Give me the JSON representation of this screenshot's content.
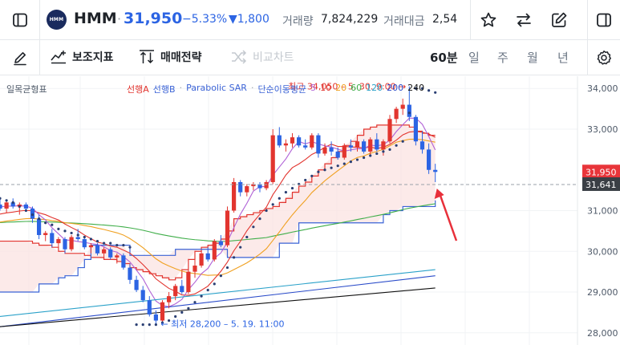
{
  "header": {
    "logo_text": "HMM",
    "ticker": "HMM",
    "separator": "·",
    "price": "31,950",
    "change_pct": "−5.33%",
    "change_abs": "▼1,800",
    "volume_label": "거래량",
    "volume_value": "7,824,229",
    "amount_label": "거래대금",
    "amount_value": "2,54",
    "actions": [
      "star-icon",
      "swap-icon",
      "edit-icon"
    ]
  },
  "toolbar": {
    "indicators_label": "보조지표",
    "strategy_label": "매매전략",
    "compare_label": "비교차트",
    "timeframes": [
      "60분",
      "일",
      "주",
      "월",
      "년"
    ],
    "active_timeframe": "60분"
  },
  "colors": {
    "up": "#e2352f",
    "down": "#2c64e3",
    "spanA": "#e2352f",
    "spanB": "#3b63d6",
    "sar": "#2a3f73",
    "ma5": "#b061d6",
    "ma10": "#e2352f",
    "ma20": "#f0a020",
    "ma60": "#3fae49",
    "ma120": "#2aa1c9",
    "ma200": "#2a4bc9",
    "ma240": "#111111",
    "cloud_fill": "#fbe3e2",
    "badge_price": "#e8353a",
    "badge_ref": "#3a3f45"
  },
  "chart_data": {
    "type": "candlestick",
    "indicator_title": "일목균형표",
    "legend": {
      "spanA": "선행A",
      "spanB": "선행B",
      "sar": "Parabolic SAR",
      "ma_label": "단순이동평균",
      "ma_periods": [
        "5",
        "10",
        "20",
        "60",
        "120",
        "200",
        "240"
      ]
    },
    "y_ticks": [
      "34,000",
      "33,000",
      "31,000",
      "30,000",
      "29,000",
      "28,000"
    ],
    "ylim": [
      27700,
      34300
    ],
    "current_price_badge": "31,950",
    "current_price": 31950,
    "ref_price_badge": "31,641",
    "ref_price": 31641,
    "high_annotation": "최고 34,050 – 5. 30. 9:00 →",
    "low_annotation": "← 최저 28,200 – 5. 19. 11:00",
    "candles": [
      [
        31150,
        31300,
        31000,
        31050
      ],
      [
        31050,
        31250,
        30950,
        31200
      ],
      [
        31200,
        31300,
        31050,
        31100
      ],
      [
        31100,
        31200,
        30900,
        31150
      ],
      [
        31150,
        31200,
        31000,
        31050
      ],
      [
        31050,
        31100,
        30700,
        30800
      ],
      [
        30800,
        30900,
        30300,
        30400
      ],
      [
        30400,
        30500,
        30250,
        30450
      ],
      [
        30450,
        30550,
        30100,
        30200
      ],
      [
        30200,
        30350,
        30100,
        30300
      ],
      [
        30300,
        30350,
        29950,
        30050
      ],
      [
        30050,
        30400,
        30000,
        30350
      ],
      [
        30350,
        30550,
        30250,
        30300
      ],
      [
        30300,
        30350,
        30050,
        30100
      ],
      [
        30100,
        30200,
        29950,
        30150
      ],
      [
        30150,
        30200,
        29900,
        29950
      ],
      [
        29950,
        30100,
        29850,
        30050
      ],
      [
        30050,
        30100,
        29800,
        29850
      ],
      [
        29850,
        29950,
        29700,
        29900
      ],
      [
        29900,
        29950,
        29550,
        29600
      ],
      [
        29600,
        29700,
        29200,
        29300
      ],
      [
        29300,
        29400,
        29000,
        29050
      ],
      [
        29050,
        29150,
        28750,
        28800
      ],
      [
        28800,
        28900,
        28400,
        28450
      ],
      [
        28450,
        28550,
        28200,
        28300
      ],
      [
        28300,
        28800,
        28250,
        28750
      ],
      [
        28750,
        29000,
        28600,
        28900
      ],
      [
        28900,
        29200,
        28800,
        29150
      ],
      [
        29150,
        29300,
        28950,
        29000
      ],
      [
        29000,
        29550,
        28950,
        29500
      ],
      [
        29500,
        29800,
        29350,
        29650
      ],
      [
        29650,
        30000,
        29600,
        29950
      ],
      [
        29950,
        30100,
        29750,
        29800
      ],
      [
        29800,
        30300,
        29750,
        30250
      ],
      [
        30250,
        30400,
        30100,
        30150
      ],
      [
        30150,
        31100,
        30100,
        31000
      ],
      [
        31000,
        31800,
        30950,
        31700
      ],
      [
        31700,
        31750,
        31350,
        31450
      ],
      [
        31450,
        31650,
        31350,
        31600
      ],
      [
        31600,
        31700,
        31500,
        31650
      ],
      [
        31650,
        31700,
        31450,
        31550
      ],
      [
        31550,
        31750,
        31500,
        31700
      ],
      [
        31700,
        33000,
        31650,
        32850
      ],
      [
        32850,
        33050,
        32550,
        32600
      ],
      [
        32600,
        32750,
        32450,
        32650
      ],
      [
        32650,
        32900,
        32550,
        32800
      ],
      [
        32800,
        32850,
        32550,
        32600
      ],
      [
        32600,
        32750,
        32500,
        32550
      ],
      [
        32550,
        32900,
        32500,
        32850
      ],
      [
        32850,
        32900,
        32300,
        32400
      ],
      [
        32400,
        32650,
        32350,
        32550
      ],
      [
        32550,
        32700,
        32350,
        32450
      ],
      [
        32450,
        32550,
        32250,
        32300
      ],
      [
        32300,
        32650,
        32250,
        32600
      ],
      [
        32600,
        32750,
        32450,
        32550
      ],
      [
        32550,
        32800,
        32450,
        32700
      ],
      [
        32700,
        32750,
        32400,
        32450
      ],
      [
        32450,
        32800,
        32350,
        32750
      ],
      [
        32750,
        32900,
        32450,
        32500
      ],
      [
        32500,
        32750,
        32350,
        32700
      ],
      [
        32700,
        33350,
        32650,
        33250
      ],
      [
        33250,
        33550,
        33150,
        33500
      ],
      [
        33500,
        33750,
        33350,
        33600
      ],
      [
        33600,
        34050,
        33200,
        33300
      ],
      [
        33300,
        33350,
        32600,
        32700
      ],
      [
        32700,
        32950,
        32400,
        32500
      ],
      [
        32500,
        32650,
        31900,
        32000
      ],
      [
        32000,
        32150,
        31700,
        31950
      ]
    ],
    "spanA": [
      30250,
      30250,
      30250,
      30250,
      30250,
      30200,
      30150,
      30150,
      30100,
      30000,
      29950,
      29950,
      29950,
      29900,
      29850,
      29850,
      29800,
      29800,
      29750,
      29700,
      29600,
      29550,
      29500,
      29450,
      29400,
      29350,
      29300,
      29350,
      29550,
      29800,
      30000,
      30100,
      30150,
      30200,
      30300,
      30500,
      30800,
      30850,
      30900,
      30950,
      31000,
      31050,
      31100,
      31200,
      31300,
      31450,
      31600,
      31700,
      31850,
      32000,
      32150,
      32300,
      32450,
      32600,
      32700,
      32850,
      33000,
      33050,
      33100,
      33100,
      33100,
      33100,
      33100,
      33050,
      32950,
      32900,
      32850,
      32850
    ],
    "spanB": [
      29000,
      29000,
      29000,
      29000,
      29000,
      29000,
      29200,
      29200,
      29200,
      29350,
      29400,
      29400,
      29600,
      29800,
      30150,
      30150,
      30150,
      30150,
      30150,
      30150,
      29900,
      29900,
      29900,
      29900,
      29900,
      29900,
      29900,
      30050,
      30050,
      30050,
      30050,
      30050,
      30050,
      30050,
      30050,
      29850,
      29850,
      29850,
      29850,
      29850,
      29850,
      29850,
      29850,
      30200,
      30200,
      30200,
      30700,
      30700,
      30700,
      30700,
      30700,
      30700,
      30700,
      30700,
      30700,
      30700,
      30700,
      30700,
      30700,
      30900,
      31000,
      31000,
      31100,
      31100,
      31100,
      31100,
      31100,
      31250
    ],
    "sar": [
      31300,
      31250,
      31200,
      31100,
      31000,
      30900,
      30800,
      30700,
      30650,
      30550,
      30500,
      30450,
      30400,
      30350,
      30300,
      30250,
      30200,
      30200,
      30150,
      30150,
      30100,
      28200,
      28200,
      28200,
      28200,
      28250,
      28300,
      28400,
      28500,
      28600,
      28750,
      28900,
      29050,
      29200,
      29400,
      29600,
      29850,
      30100,
      30350,
      30600,
      30800,
      31000,
      31150,
      31300,
      31450,
      31550,
      31650,
      31750,
      31850,
      31950,
      32000,
      32050,
      32100,
      32150,
      32200,
      32250,
      32300,
      32350,
      32400,
      32450,
      32500,
      32600,
      32700,
      33400,
      34000,
      34000,
      33950,
      33900
    ]
  }
}
